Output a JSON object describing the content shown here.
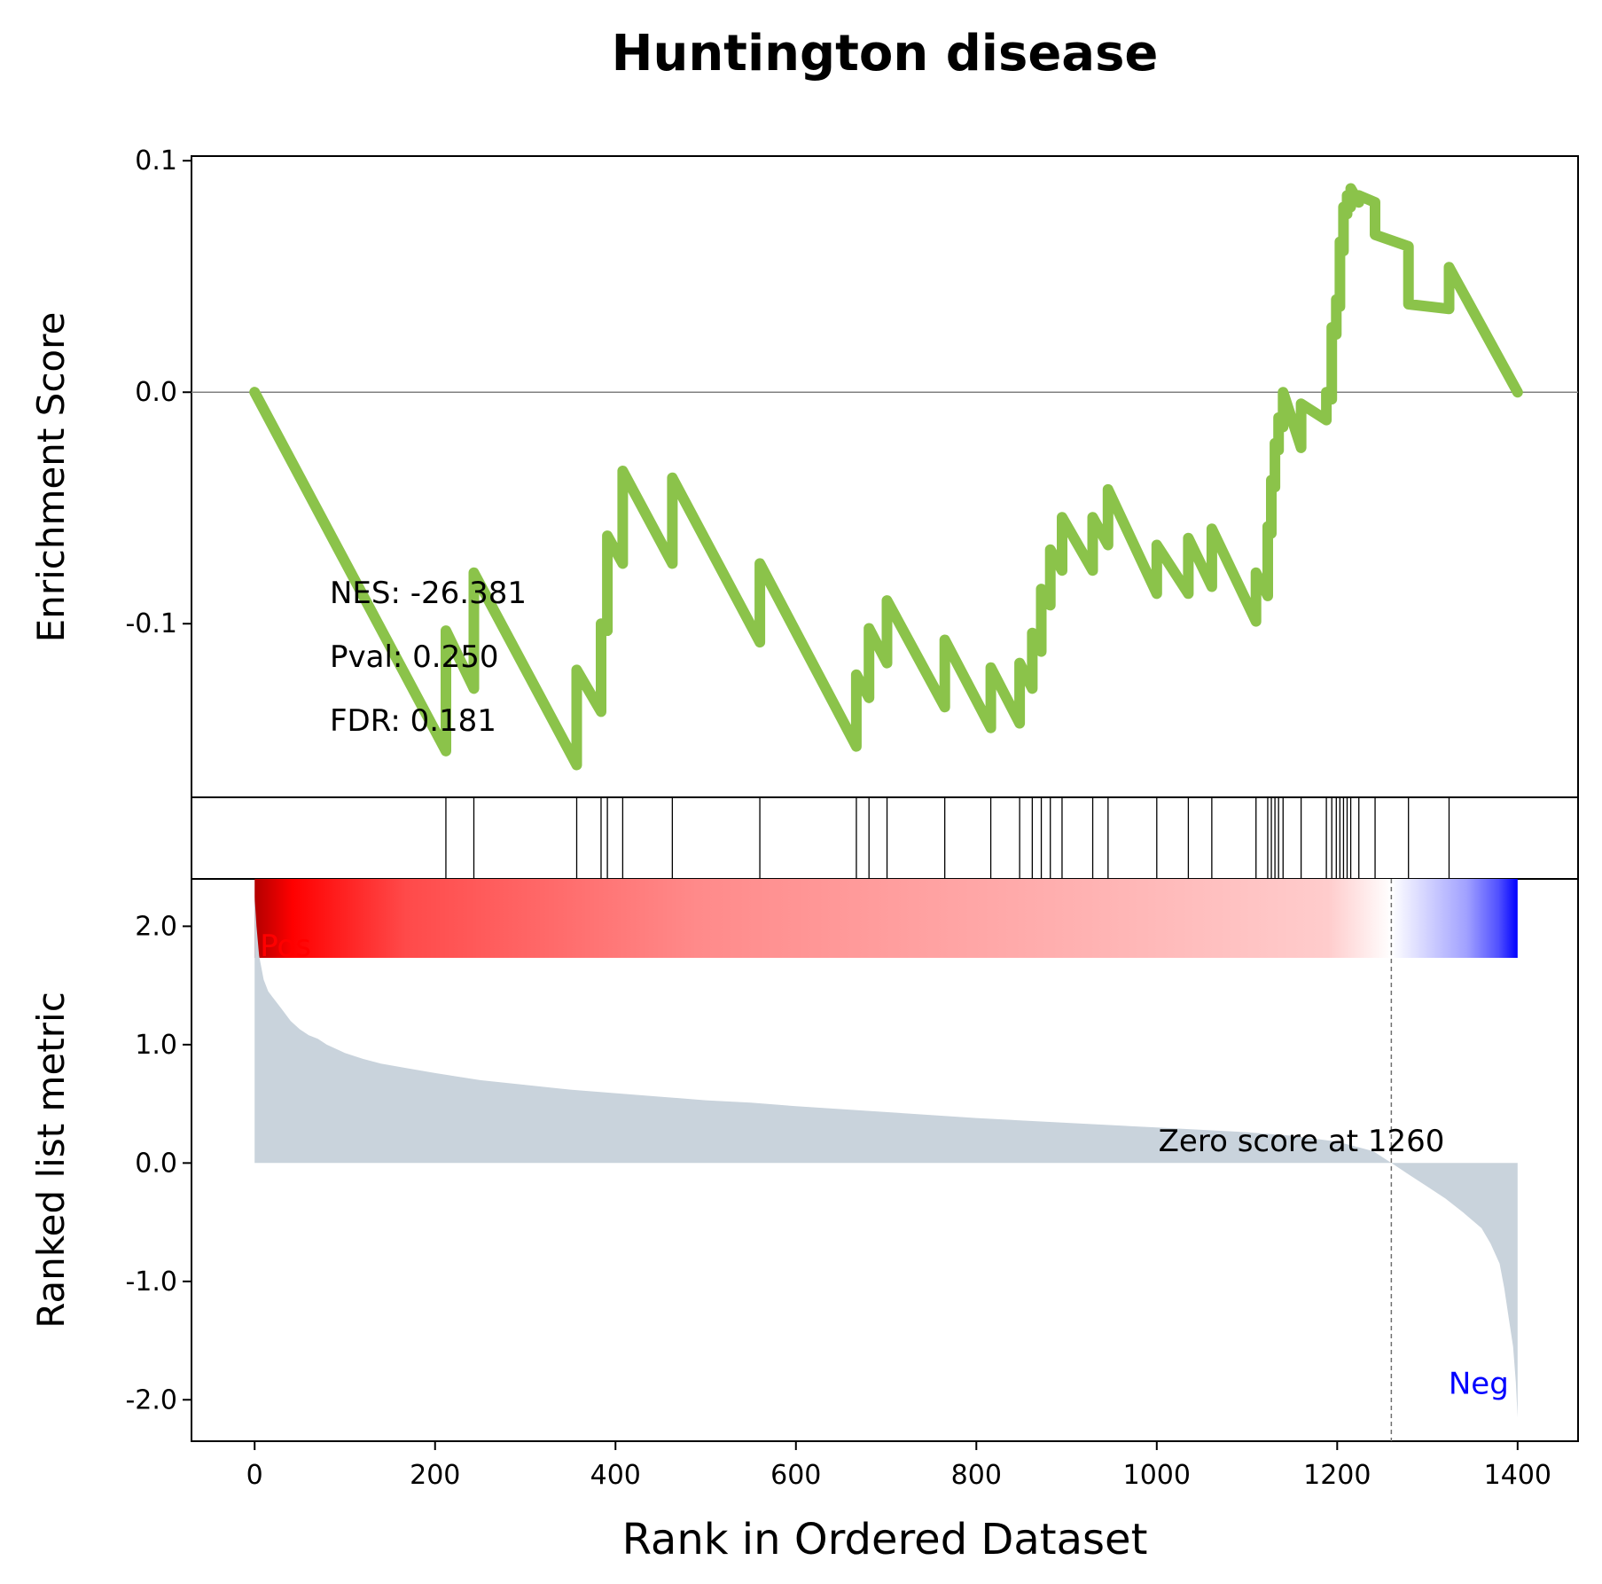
{
  "chart_data": {
    "type": "line",
    "title": "Huntington disease",
    "xlabel": "Rank in Ordered Dataset",
    "xlim": [
      -70,
      1467
    ],
    "x_ticks": [
      0,
      200,
      400,
      600,
      800,
      1000,
      1200,
      1400
    ],
    "x_tick_labels": [
      "0",
      "200",
      "400",
      "600",
      "800",
      "1000",
      "1200",
      "1400"
    ],
    "colors": {
      "es_line": "#8bc34a",
      "metric_fill": "#c9d3dc",
      "pos_label": "#ff0000",
      "neg_label": "#0000ff",
      "zero_line": "#808080"
    },
    "enrichment": {
      "ylabel": "Enrichment Score",
      "ylim": [
        -0.175,
        0.102
      ],
      "y_ticks": [
        0.1,
        0.0,
        -0.1
      ],
      "y_tick_labels": [
        "0.1",
        "0.0",
        "-0.1"
      ],
      "stats": {
        "nes": "NES: -26.381",
        "pval": "Pval: 0.250",
        "fdr": "FDR: 0.181"
      },
      "x": [
        0,
        212,
        212,
        243,
        243,
        357,
        357,
        384,
        384,
        391,
        391,
        408,
        408,
        463,
        463,
        560,
        560,
        667,
        667,
        681,
        681,
        701,
        701,
        765,
        765,
        816,
        816,
        848,
        848,
        862,
        862,
        872,
        872,
        882,
        882,
        895,
        895,
        929,
        929,
        946,
        946,
        1000,
        1000,
        1035,
        1035,
        1061,
        1061,
        1110,
        1110,
        1123,
        1123,
        1127,
        1127,
        1131,
        1131,
        1135,
        1135,
        1140,
        1140,
        1160,
        1160,
        1188,
        1188,
        1194,
        1194,
        1199,
        1199,
        1203,
        1203,
        1207,
        1207,
        1211,
        1211,
        1215,
        1215,
        1224,
        1224,
        1242,
        1242,
        1279,
        1279,
        1324,
        1324,
        1400
      ],
      "y": [
        0.0,
        -0.155,
        -0.103,
        -0.128,
        -0.078,
        -0.161,
        -0.12,
        -0.138,
        -0.1,
        -0.103,
        -0.062,
        -0.074,
        -0.034,
        -0.074,
        -0.037,
        -0.108,
        -0.074,
        -0.153,
        -0.122,
        -0.132,
        -0.102,
        -0.117,
        -0.09,
        -0.136,
        -0.107,
        -0.145,
        -0.119,
        -0.143,
        -0.117,
        -0.128,
        -0.104,
        -0.112,
        -0.085,
        -0.092,
        -0.068,
        -0.077,
        -0.054,
        -0.077,
        -0.054,
        -0.066,
        -0.042,
        -0.087,
        -0.066,
        -0.087,
        -0.063,
        -0.084,
        -0.059,
        -0.099,
        -0.078,
        -0.088,
        -0.058,
        -0.061,
        -0.038,
        -0.041,
        -0.022,
        -0.025,
        -0.011,
        -0.015,
        0.0,
        -0.024,
        -0.005,
        -0.012,
        0.0,
        -0.003,
        0.028,
        0.025,
        0.04,
        0.037,
        0.065,
        0.061,
        0.08,
        0.077,
        0.085,
        0.08,
        0.088,
        0.082,
        0.085,
        0.082,
        0.068,
        0.063,
        0.038,
        0.036,
        0.054,
        0.0
      ]
    },
    "hits": [
      212,
      243,
      357,
      384,
      391,
      408,
      463,
      560,
      667,
      681,
      701,
      765,
      816,
      848,
      862,
      872,
      882,
      895,
      929,
      946,
      1000,
      1035,
      1061,
      1110,
      1123,
      1127,
      1131,
      1135,
      1140,
      1160,
      1188,
      1194,
      1199,
      1203,
      1207,
      1211,
      1215,
      1224,
      1242,
      1279,
      1324
    ],
    "ranked_metric": {
      "ylabel": "Ranked list metric",
      "ylim": [
        -2.35,
        2.4
      ],
      "y_ticks": [
        2.0,
        1.0,
        0.0,
        -1.0,
        -2.0
      ],
      "y_tick_labels": [
        "2.0",
        "1.0",
        "0.0",
        "-1.0",
        "-2.0"
      ],
      "pos_label": "Pos",
      "neg_label": "Neg",
      "zero_score_label": "Zero score at 1260",
      "zero_cross": 1260,
      "x": [
        0,
        2,
        5,
        10,
        15,
        20,
        30,
        40,
        50,
        60,
        70,
        80,
        100,
        120,
        140,
        170,
        200,
        250,
        300,
        350,
        400,
        450,
        500,
        550,
        600,
        700,
        800,
        900,
        1000,
        1100,
        1150,
        1200,
        1240,
        1260,
        1280,
        1300,
        1320,
        1340,
        1360,
        1370,
        1380,
        1385,
        1390,
        1395,
        1398,
        1400
      ],
      "y": [
        2.25,
        2.0,
        1.75,
        1.55,
        1.45,
        1.4,
        1.3,
        1.2,
        1.13,
        1.08,
        1.05,
        1.0,
        0.93,
        0.88,
        0.84,
        0.8,
        0.76,
        0.7,
        0.66,
        0.62,
        0.59,
        0.56,
        0.53,
        0.51,
        0.48,
        0.43,
        0.38,
        0.34,
        0.3,
        0.26,
        0.23,
        0.18,
        0.1,
        0.0,
        -0.1,
        -0.2,
        -0.3,
        -0.42,
        -0.55,
        -0.68,
        -0.85,
        -1.05,
        -1.3,
        -1.55,
        -1.85,
        -2.15
      ]
    }
  }
}
